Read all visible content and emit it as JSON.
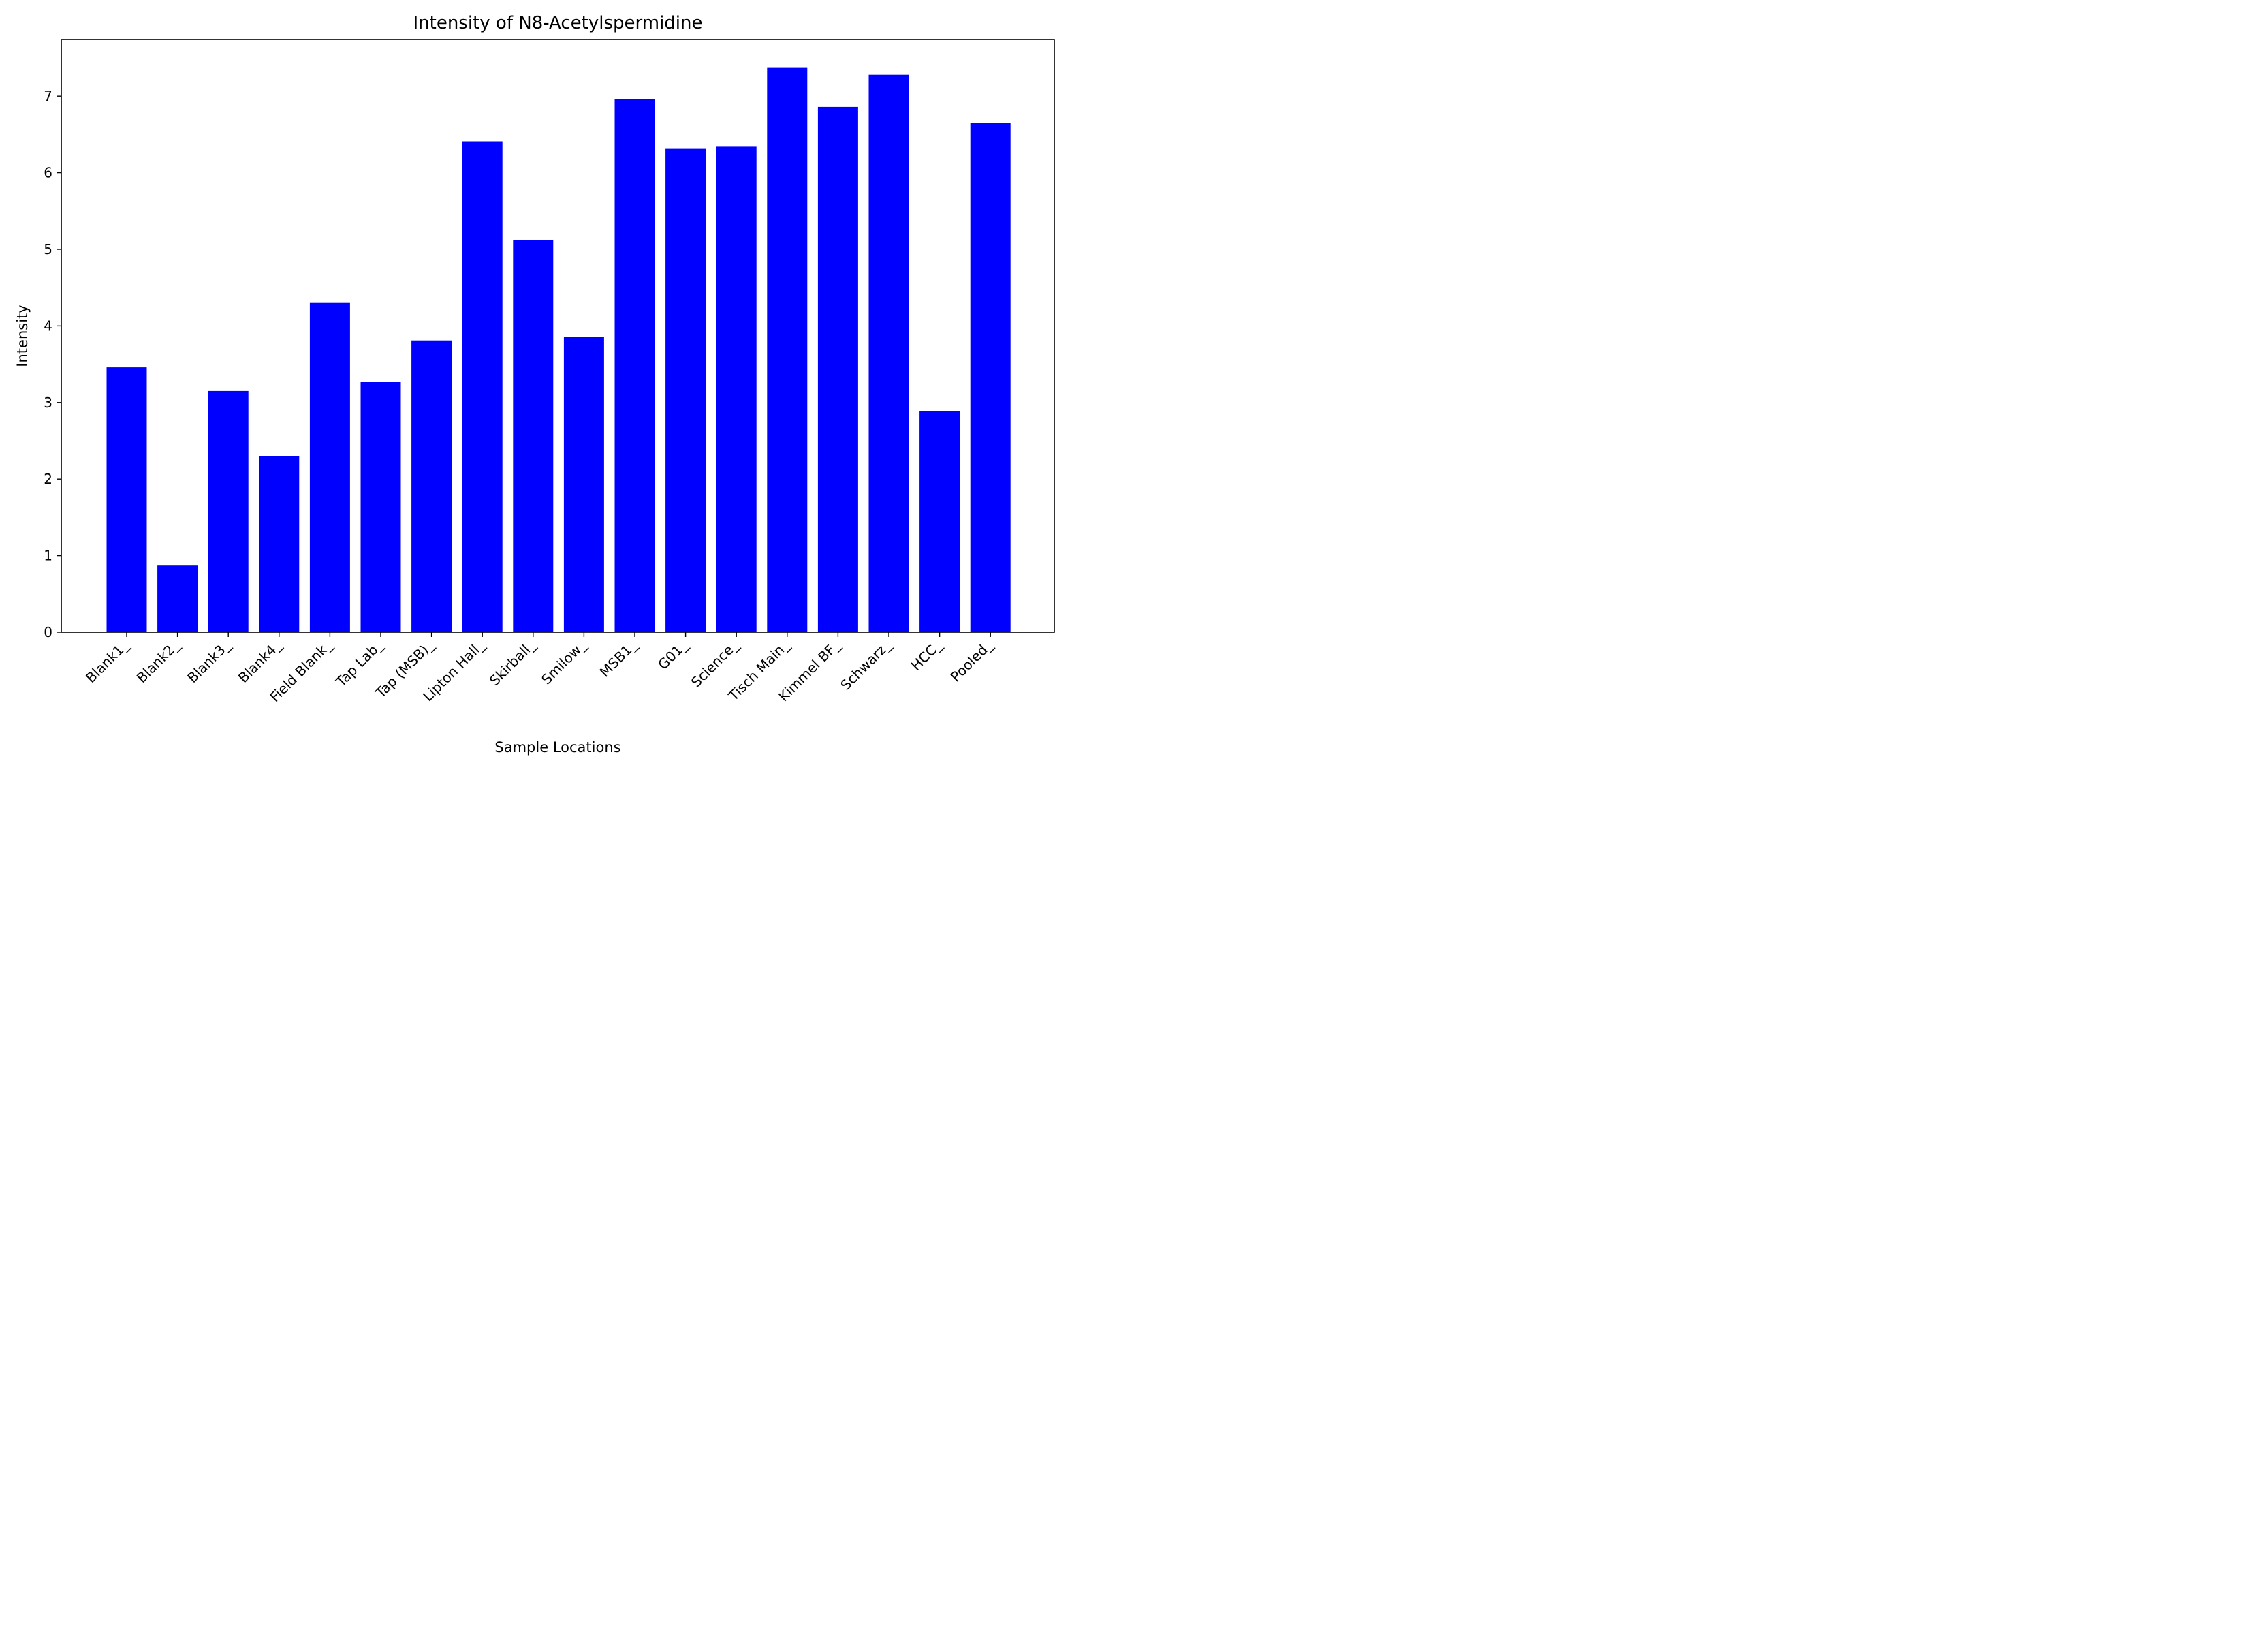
{
  "chart_data": {
    "type": "bar",
    "title": "Intensity of N8-Acetylspermidine",
    "xlabel": "Sample Locations",
    "ylabel": "Intensity",
    "categories": [
      "Blank1_",
      "Blank2_",
      "Blank3_",
      "Blank4_",
      "Field Blank_",
      "Tap Lab_",
      "Tap (MSB)_",
      "Lipton Hall_",
      "Skirball_",
      "Smilow_",
      "MSB1_",
      "G01_",
      "Science_",
      "Tisch Main_",
      "Kimmel BF_",
      "Schwarz_",
      "HCC_",
      "Pooled_"
    ],
    "values": [
      3.46,
      0.87,
      3.15,
      2.3,
      4.3,
      3.27,
      3.81,
      6.41,
      5.12,
      3.86,
      6.96,
      6.32,
      6.34,
      7.37,
      6.86,
      7.28,
      2.89,
      6.65
    ],
    "yticks": [
      0,
      1,
      2,
      3,
      4,
      5,
      6,
      7
    ],
    "ylim": [
      0,
      7.74
    ],
    "bar_color": "#0000ff",
    "grid": false,
    "legend": "none"
  }
}
